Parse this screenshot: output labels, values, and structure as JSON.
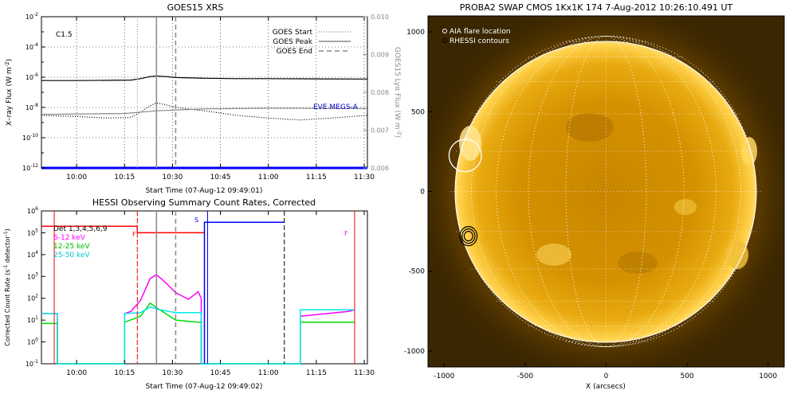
{
  "chart_data": [
    {
      "type": "line",
      "title": "GOES15 XRS",
      "class_label": "C1.5",
      "xlabel": "Start Time (07-Aug-12 09:49:01)",
      "ylabel": "X-ray Flux (W m^-2)",
      "ylabel_right": "GOES15 Lyα Flux (W m^-2)",
      "x_range": [
        "09:49",
        "11:31"
      ],
      "x_ticks": [
        "10:00",
        "10:15",
        "10:30",
        "10:45",
        "11:00",
        "11:15",
        "11:30"
      ],
      "y_scale": "log",
      "ylim": [
        1e-12,
        0.01
      ],
      "y_ticks": [
        "10^-2",
        "10^-4",
        "10^-6",
        "10^-8",
        "10^-10",
        "10^-12"
      ],
      "y2_range": [
        0.006,
        0.01
      ],
      "y2_ticks": [
        "0.010",
        "0.009",
        "0.008",
        "0.007",
        "0.006"
      ],
      "legend": {
        "placement": "top-right",
        "entries": [
          {
            "label": "GOES Start",
            "style": "dotted"
          },
          {
            "label": "GOES Peak",
            "style": "solid"
          },
          {
            "label": "GOES End",
            "style": "dashed"
          }
        ]
      },
      "markers": {
        "start": "10:19",
        "peak": "10:25",
        "end": "10:31"
      },
      "annotation": "EVE MEGS-A",
      "series": [
        {
          "color": "#000000",
          "style": "solid",
          "x": [
            "09:49",
            "10:00",
            "10:10",
            "10:17",
            "10:20",
            "10:23",
            "10:25",
            "10:28",
            "10:31",
            "10:40",
            "10:50",
            "11:00",
            "11:15",
            "11:31"
          ],
          "y": [
            6e-07,
            6e-07,
            6.2e-07,
            6.5e-07,
            8e-07,
            1.1e-06,
            1.2e-06,
            1.1e-06,
            9.5e-07,
            8.5e-07,
            8e-07,
            8e-07,
            7.8e-07,
            7.6e-07
          ]
        },
        {
          "color": "#000000",
          "style": "dotted",
          "x": [
            "09:49",
            "10:00",
            "10:10",
            "10:17",
            "10:20",
            "10:23",
            "10:25",
            "10:28",
            "10:31",
            "10:40",
            "10:50",
            "11:00",
            "11:10",
            "11:20",
            "11:31"
          ],
          "y": [
            3e-09,
            2.5e-09,
            2e-09,
            2.2e-09,
            5e-09,
            1.3e-08,
            2e-08,
            1.5e-08,
            1e-08,
            6e-09,
            3e-09,
            2e-09,
            1.5e-09,
            2e-09,
            3e-09
          ]
        },
        {
          "color": "#888888",
          "style": "solid",
          "name": "EVE MEGS-A",
          "x": [
            "09:49",
            "10:15",
            "10:25",
            "10:40",
            "11:00",
            "11:31"
          ],
          "y": [
            3.5e-09,
            4e-09,
            6e-09,
            8e-09,
            9e-09,
            8.5e-09
          ]
        },
        {
          "color": "#0000ff",
          "style": "solid",
          "x": [
            "09:49",
            "11:31"
          ],
          "y": [
            1e-12,
            1e-12
          ]
        }
      ]
    },
    {
      "type": "line",
      "title": "HESSI Observing Summary Count Rates, Corrected",
      "xlabel": "Start Time (07-Aug-12 09:49:02)",
      "ylabel": "Corrected Count Rate (s^-1 detector^-1)",
      "x_range": [
        "09:49",
        "11:31"
      ],
      "x_ticks": [
        "10:00",
        "10:15",
        "10:30",
        "10:45",
        "11:00",
        "11:15",
        "11:30"
      ],
      "y_scale": "log",
      "ylim": [
        0.1,
        1000000.0
      ],
      "y_ticks": [
        "10^6",
        "10^5",
        "10^4",
        "10^3",
        "10^2",
        "10^1",
        "10^0",
        "10^-1"
      ],
      "legend_entries": [
        {
          "label": "Det 1,3,4,5,6,9",
          "color": "#000000"
        },
        {
          "label": "6-12 keV",
          "color": "#ff00ff"
        },
        {
          "label": "12-25 keV",
          "color": "#00dd00"
        },
        {
          "label": "25-50 keV",
          "color": "#00e8e8"
        }
      ],
      "letters": [
        "F",
        "S",
        "F"
      ],
      "markers": {
        "start": "10:19",
        "peak": "10:25",
        "end": "10:31"
      },
      "series": [
        {
          "name": "6-12 keV",
          "color": "#ff00ff",
          "x": [
            "09:49",
            "09:54",
            "09:54",
            "10:15",
            "10:15",
            "10:17",
            "10:20",
            "10:23",
            "10:25",
            "10:28",
            "10:31",
            "10:35",
            "10:38",
            "10:39",
            "10:39",
            "11:10",
            "11:10",
            "11:25",
            "11:27"
          ],
          "y": [
            20,
            20,
            0.1,
            0.1,
            20,
            25,
            80,
            800,
            1200,
            500,
            180,
            90,
            200,
            100,
            0.1,
            0.1,
            15,
            25,
            30
          ]
        },
        {
          "name": "12-25 keV",
          "color": "#00dd00",
          "x": [
            "09:49",
            "09:54",
            "09:54",
            "10:15",
            "10:15",
            "10:20",
            "10:23",
            "10:26",
            "10:31",
            "10:38",
            "10:39",
            "10:39",
            "11:10",
            "11:10",
            "11:27"
          ],
          "y": [
            7,
            7,
            0.1,
            0.1,
            8,
            15,
            60,
            30,
            10,
            8,
            8,
            0.1,
            0.1,
            8,
            8
          ]
        },
        {
          "name": "25-50 keV",
          "color": "#00e8e8",
          "x": [
            "09:49",
            "09:54",
            "09:54",
            "10:15",
            "10:15",
            "10:20",
            "10:23",
            "10:26",
            "10:31",
            "10:38",
            "10:39",
            "10:39",
            "11:10",
            "11:10",
            "11:27"
          ],
          "y": [
            20,
            20,
            0.1,
            0.1,
            20,
            22,
            40,
            30,
            22,
            22,
            22,
            0.1,
            0.1,
            30,
            30
          ]
        },
        {
          "color": "#ff0000",
          "style": "solid",
          "x": [
            "09:49",
            "10:19",
            "10:19",
            "10:40"
          ],
          "y": [
            200000,
            200000,
            100000,
            100000
          ]
        },
        {
          "color": "#0000ff",
          "style": "solid",
          "x": [
            "10:40",
            "10:40",
            "11:05"
          ],
          "y": [
            0.1,
            300000,
            300000
          ]
        }
      ]
    },
    {
      "type": "image",
      "title": "PROBA2 SWAP CMOS 1Kx1K 174   7-Aug-2012 10:26:10.491 UT",
      "xlabel": "X (arcsecs)",
      "ylabel": "",
      "xlim": [
        -1100,
        1100
      ],
      "ylim": [
        -1100,
        1100
      ],
      "x_ticks": [
        "-1000",
        "-500",
        "0",
        "500",
        "1000"
      ],
      "y_ticks": [
        "1000",
        "500",
        "0",
        "-500",
        "-1000"
      ],
      "legend": {
        "placement": "top-left",
        "entries": [
          {
            "label": "AIA flare location",
            "color": "#ffffff",
            "symbol": "o"
          },
          {
            "label": "RHESSI contours",
            "color": "#000000",
            "symbol": "o"
          }
        ]
      },
      "solar_radius": 960,
      "aia_flare_location": {
        "x": -870,
        "y": 225,
        "radius": 100
      },
      "rhessi_contour_center": {
        "x": -850,
        "y": -280
      }
    }
  ]
}
